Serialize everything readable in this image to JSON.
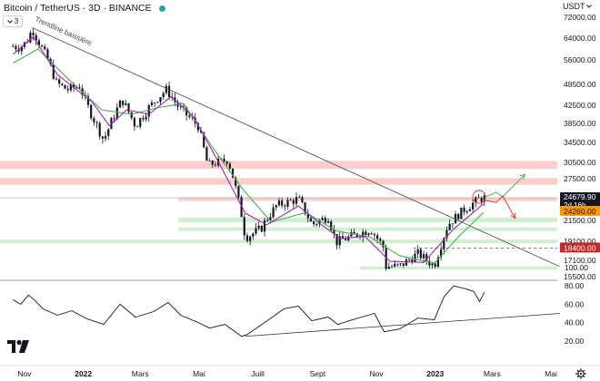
{
  "header": {
    "title": "Bitcoin / TetherUS · 3D · BINANCE",
    "status_color": "#26a69a",
    "currency_label": "USDT",
    "currency_icon": "chevron-down-icon",
    "toggle_label": "3",
    "toggle_icon": "chevron-down-icon"
  },
  "colors": {
    "candle_up": "#26a69a",
    "candle_down": "#ef5350",
    "candle_body": "#131722",
    "ema_fast": "#9c27b0",
    "ema_slow": "#4caf50",
    "resistance_zone": "#f8c7c3",
    "support_zone": "#cdeccc",
    "trendline": "#555555",
    "scenario_up": "#4caf50",
    "scenario_down": "#e53935"
  },
  "annotations": {
    "trendline_label": "Trendline baissière",
    "countdown": "2d 16h"
  },
  "price_axis": {
    "ticks": [
      "72000.00",
      "64000.00",
      "56000.00",
      "48500.00",
      "42500.00",
      "38500.00",
      "34500.00",
      "30500.00",
      "27500.00",
      "24260.00",
      "21500.00",
      "19100.00",
      "17100.00",
      "15500.00"
    ],
    "current_price": "24679.90",
    "badge_orange": "24260.00",
    "badge_red": "18400.00"
  },
  "indicator_axis": {
    "ticks": [
      "100.00",
      "80.00",
      "60.00",
      "40.00",
      "20.00"
    ]
  },
  "time_axis": {
    "ticks": [
      "Nov",
      "2022",
      "Mars",
      "Mai",
      "Juill",
      "Sept",
      "Nov",
      "2023",
      "Mars",
      "Mai"
    ]
  },
  "chart_data": {
    "type": "candlestick",
    "title": "Bitcoin / TetherUS · 3D · BINANCE",
    "x_unit": "date",
    "close_path": [
      [
        "2021-10-20",
        61000
      ],
      [
        "2021-10-27",
        60500
      ],
      [
        "2021-11-03",
        62500
      ],
      [
        "2021-11-09",
        67500
      ],
      [
        "2021-11-15",
        63000
      ],
      [
        "2021-11-24",
        57000
      ],
      [
        "2021-12-04",
        49000
      ],
      [
        "2021-12-15",
        47000
      ],
      [
        "2021-12-28",
        48000
      ],
      [
        "2022-01-06",
        42000
      ],
      [
        "2022-01-22",
        35000
      ],
      [
        "2022-02-10",
        44000
      ],
      [
        "2022-02-24",
        38000
      ],
      [
        "2022-03-28",
        47000
      ],
      [
        "2022-04-10",
        42000
      ],
      [
        "2022-04-30",
        38000
      ],
      [
        "2022-05-10",
        30000
      ],
      [
        "2022-05-31",
        31000
      ],
      [
        "2022-06-13",
        23000
      ],
      [
        "2022-06-18",
        19500
      ],
      [
        "2022-07-04",
        20500
      ],
      [
        "2022-07-20",
        23500
      ],
      [
        "2022-08-12",
        24500
      ],
      [
        "2022-08-26",
        21000
      ],
      [
        "2022-09-12",
        22000
      ],
      [
        "2022-09-20",
        19000
      ],
      [
        "2022-10-26",
        20500
      ],
      [
        "2022-11-08",
        18500
      ],
      [
        "2022-11-09",
        16500
      ],
      [
        "2022-11-25",
        16500
      ],
      [
        "2022-12-14",
        17800
      ],
      [
        "2022-12-31",
        16550
      ],
      [
        "2023-01-14",
        21000
      ],
      [
        "2023-01-31",
        23000
      ],
      [
        "2023-02-16",
        24500
      ],
      [
        "2023-02-21",
        24680
      ]
    ],
    "ema_fast": [
      [
        "2021-10-20",
        58000
      ],
      [
        "2021-11-10",
        64500
      ],
      [
        "2021-12-05",
        51500
      ],
      [
        "2022-01-10",
        43500
      ],
      [
        "2022-01-28",
        38000
      ],
      [
        "2022-02-15",
        41500
      ],
      [
        "2022-03-10",
        40500
      ],
      [
        "2022-04-02",
        45000
      ],
      [
        "2022-04-25",
        40000
      ],
      [
        "2022-05-20",
        31000
      ],
      [
        "2022-06-18",
        22500
      ],
      [
        "2022-07-10",
        21000
      ],
      [
        "2022-08-12",
        23500
      ],
      [
        "2022-09-05",
        21000
      ],
      [
        "2022-09-25",
        19400
      ],
      [
        "2022-10-20",
        19700
      ],
      [
        "2022-11-15",
        17000
      ],
      [
        "2022-12-20",
        16900
      ],
      [
        "2023-01-20",
        20500
      ],
      [
        "2023-02-20",
        23800
      ]
    ],
    "ema_slow": [
      [
        "2021-10-20",
        55000
      ],
      [
        "2021-11-15",
        60000
      ],
      [
        "2021-12-15",
        50500
      ],
      [
        "2022-01-20",
        41500
      ],
      [
        "2022-02-20",
        40500
      ],
      [
        "2022-03-20",
        42000
      ],
      [
        "2022-04-15",
        43000
      ],
      [
        "2022-05-15",
        33500
      ],
      [
        "2022-06-15",
        26000
      ],
      [
        "2022-07-15",
        21300
      ],
      [
        "2022-08-20",
        22600
      ],
      [
        "2022-09-20",
        20300
      ],
      [
        "2022-10-25",
        19600
      ],
      [
        "2022-11-25",
        17600
      ],
      [
        "2022-12-31",
        16800
      ],
      [
        "2023-01-25",
        19600
      ],
      [
        "2023-02-20",
        22600
      ]
    ],
    "resistance_zones": [
      [
        29300,
        30800
      ],
      [
        26600,
        27600
      ],
      [
        24200,
        24700
      ]
    ],
    "support_zones": [
      [
        21300,
        21900
      ],
      [
        20300,
        20700
      ],
      [
        18900,
        19300
      ],
      [
        16200,
        16500
      ]
    ],
    "trendline": [
      [
        "2021-11-09",
        68000
      ],
      [
        "2023-05-10",
        16500
      ]
    ],
    "scenarios": {
      "bullish": [
        [
          "2023-02-21",
          24700
        ],
        [
          "2023-03-05",
          25500
        ],
        [
          "2023-03-12",
          24800
        ],
        [
          "2023-04-04",
          28300
        ]
      ],
      "bearish": [
        [
          "2023-02-21",
          24300
        ],
        [
          "2023-03-05",
          24000
        ],
        [
          "2023-03-12",
          24900
        ],
        [
          "2023-03-25",
          21800
        ]
      ]
    },
    "horizontal_lines": [
      24260,
      18400
    ],
    "indicator": {
      "name": "",
      "ylim": [
        0,
        100
      ],
      "values": [
        [
          "2021-10-20",
          65
        ],
        [
          "2021-10-28",
          60
        ],
        [
          "2021-11-05",
          70
        ],
        [
          "2021-11-12",
          64
        ],
        [
          "2021-11-20",
          55
        ],
        [
          "2021-12-05",
          48
        ],
        [
          "2021-12-20",
          53
        ],
        [
          "2022-01-05",
          44
        ],
        [
          "2022-01-22",
          38
        ],
        [
          "2022-02-08",
          60
        ],
        [
          "2022-02-24",
          46
        ],
        [
          "2022-03-15",
          52
        ],
        [
          "2022-03-30",
          62
        ],
        [
          "2022-04-12",
          48
        ],
        [
          "2022-04-30",
          40
        ],
        [
          "2022-05-12",
          34
        ],
        [
          "2022-05-28",
          38
        ],
        [
          "2022-06-14",
          25
        ],
        [
          "2022-06-20",
          27
        ],
        [
          "2022-07-08",
          40
        ],
        [
          "2022-07-28",
          55
        ],
        [
          "2022-08-12",
          58
        ],
        [
          "2022-08-26",
          42
        ],
        [
          "2022-09-12",
          46
        ],
        [
          "2022-09-22",
          38
        ],
        [
          "2022-10-10",
          44
        ],
        [
          "2022-10-30",
          50
        ],
        [
          "2022-11-09",
          30
        ],
        [
          "2022-11-25",
          33
        ],
        [
          "2022-12-14",
          45
        ],
        [
          "2022-12-31",
          43
        ],
        [
          "2023-01-10",
          68
        ],
        [
          "2023-01-20",
          80
        ],
        [
          "2023-02-01",
          77
        ],
        [
          "2023-02-10",
          74
        ],
        [
          "2023-02-16",
          63
        ],
        [
          "2023-02-21",
          73
        ]
      ],
      "trendline": [
        [
          "2022-06-18",
          25
        ],
        [
          "2023-05-10",
          50
        ]
      ]
    }
  }
}
